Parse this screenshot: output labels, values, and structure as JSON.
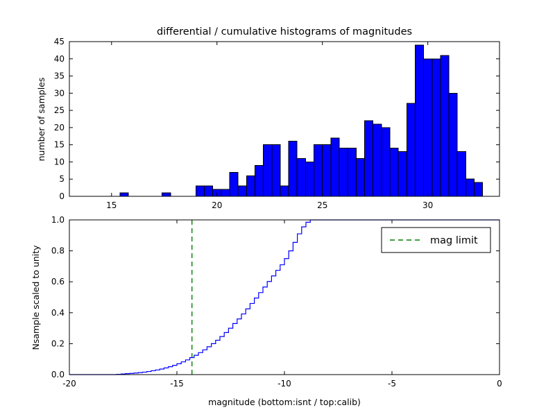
{
  "figure": {
    "background": "#ffffff",
    "frame_color": "#000000"
  },
  "chart_data": [
    {
      "type": "bar",
      "subplot": "top",
      "title": "differential / cumulative histograms of magnitudes",
      "ylabel": "number of samples",
      "xlabel": "",
      "xlim": [
        13.0,
        33.4
      ],
      "ylim": [
        0,
        45
      ],
      "xticks": [
        15,
        20,
        25,
        30
      ],
      "yticks": [
        0,
        5,
        10,
        15,
        20,
        25,
        30,
        35,
        40,
        45
      ],
      "bar_color": "#0000ff",
      "bar_edge_color": "#000000",
      "bins": {
        "start": 15.4,
        "width": 0.4
      },
      "values": [
        1,
        0,
        0,
        0,
        0,
        1,
        0,
        0,
        0,
        3,
        3,
        2,
        2,
        7,
        3,
        6,
        9,
        15,
        15,
        3,
        16,
        11,
        10,
        15,
        15,
        17,
        14,
        14,
        11,
        22,
        21,
        20,
        14,
        13,
        27,
        44,
        40,
        40,
        41,
        30,
        13,
        5,
        4,
        0
      ]
    },
    {
      "type": "line",
      "subplot": "bottom",
      "ylabel": "Nsample scaled to unity",
      "xlabel": "magnitude (bottom:isnt / top:calib)",
      "xlim": [
        -20,
        0
      ],
      "ylim": [
        0,
        1.0
      ],
      "xticks": [
        -20,
        -15,
        -10,
        -5,
        0
      ],
      "yticks": [
        0.0,
        0.2,
        0.4,
        0.6,
        0.8,
        1.0
      ],
      "line_color": "#0000ff",
      "cumulative_steps": {
        "start": -17.8,
        "width": 0.2,
        "values": [
          0.002,
          0.004,
          0.006,
          0.008,
          0.01,
          0.013,
          0.016,
          0.02,
          0.025,
          0.03,
          0.036,
          0.043,
          0.051,
          0.06,
          0.07,
          0.082,
          0.095,
          0.11,
          0.125,
          0.142,
          0.16,
          0.18,
          0.2,
          0.222,
          0.246,
          0.272,
          0.3,
          0.33,
          0.36,
          0.392,
          0.425,
          0.46,
          0.495,
          0.53,
          0.566,
          0.602,
          0.638,
          0.674,
          0.71,
          0.75,
          0.8,
          0.855,
          0.91,
          0.955,
          0.985,
          1.0
        ]
      },
      "mag_limit": {
        "x": -14.3,
        "color": "#008000",
        "linestyle": "dashed",
        "label": "mag limit"
      },
      "legend": {
        "position": "upper right",
        "entries": [
          {
            "label": "mag limit",
            "color": "#008000",
            "linestyle": "dashed"
          }
        ]
      }
    }
  ]
}
